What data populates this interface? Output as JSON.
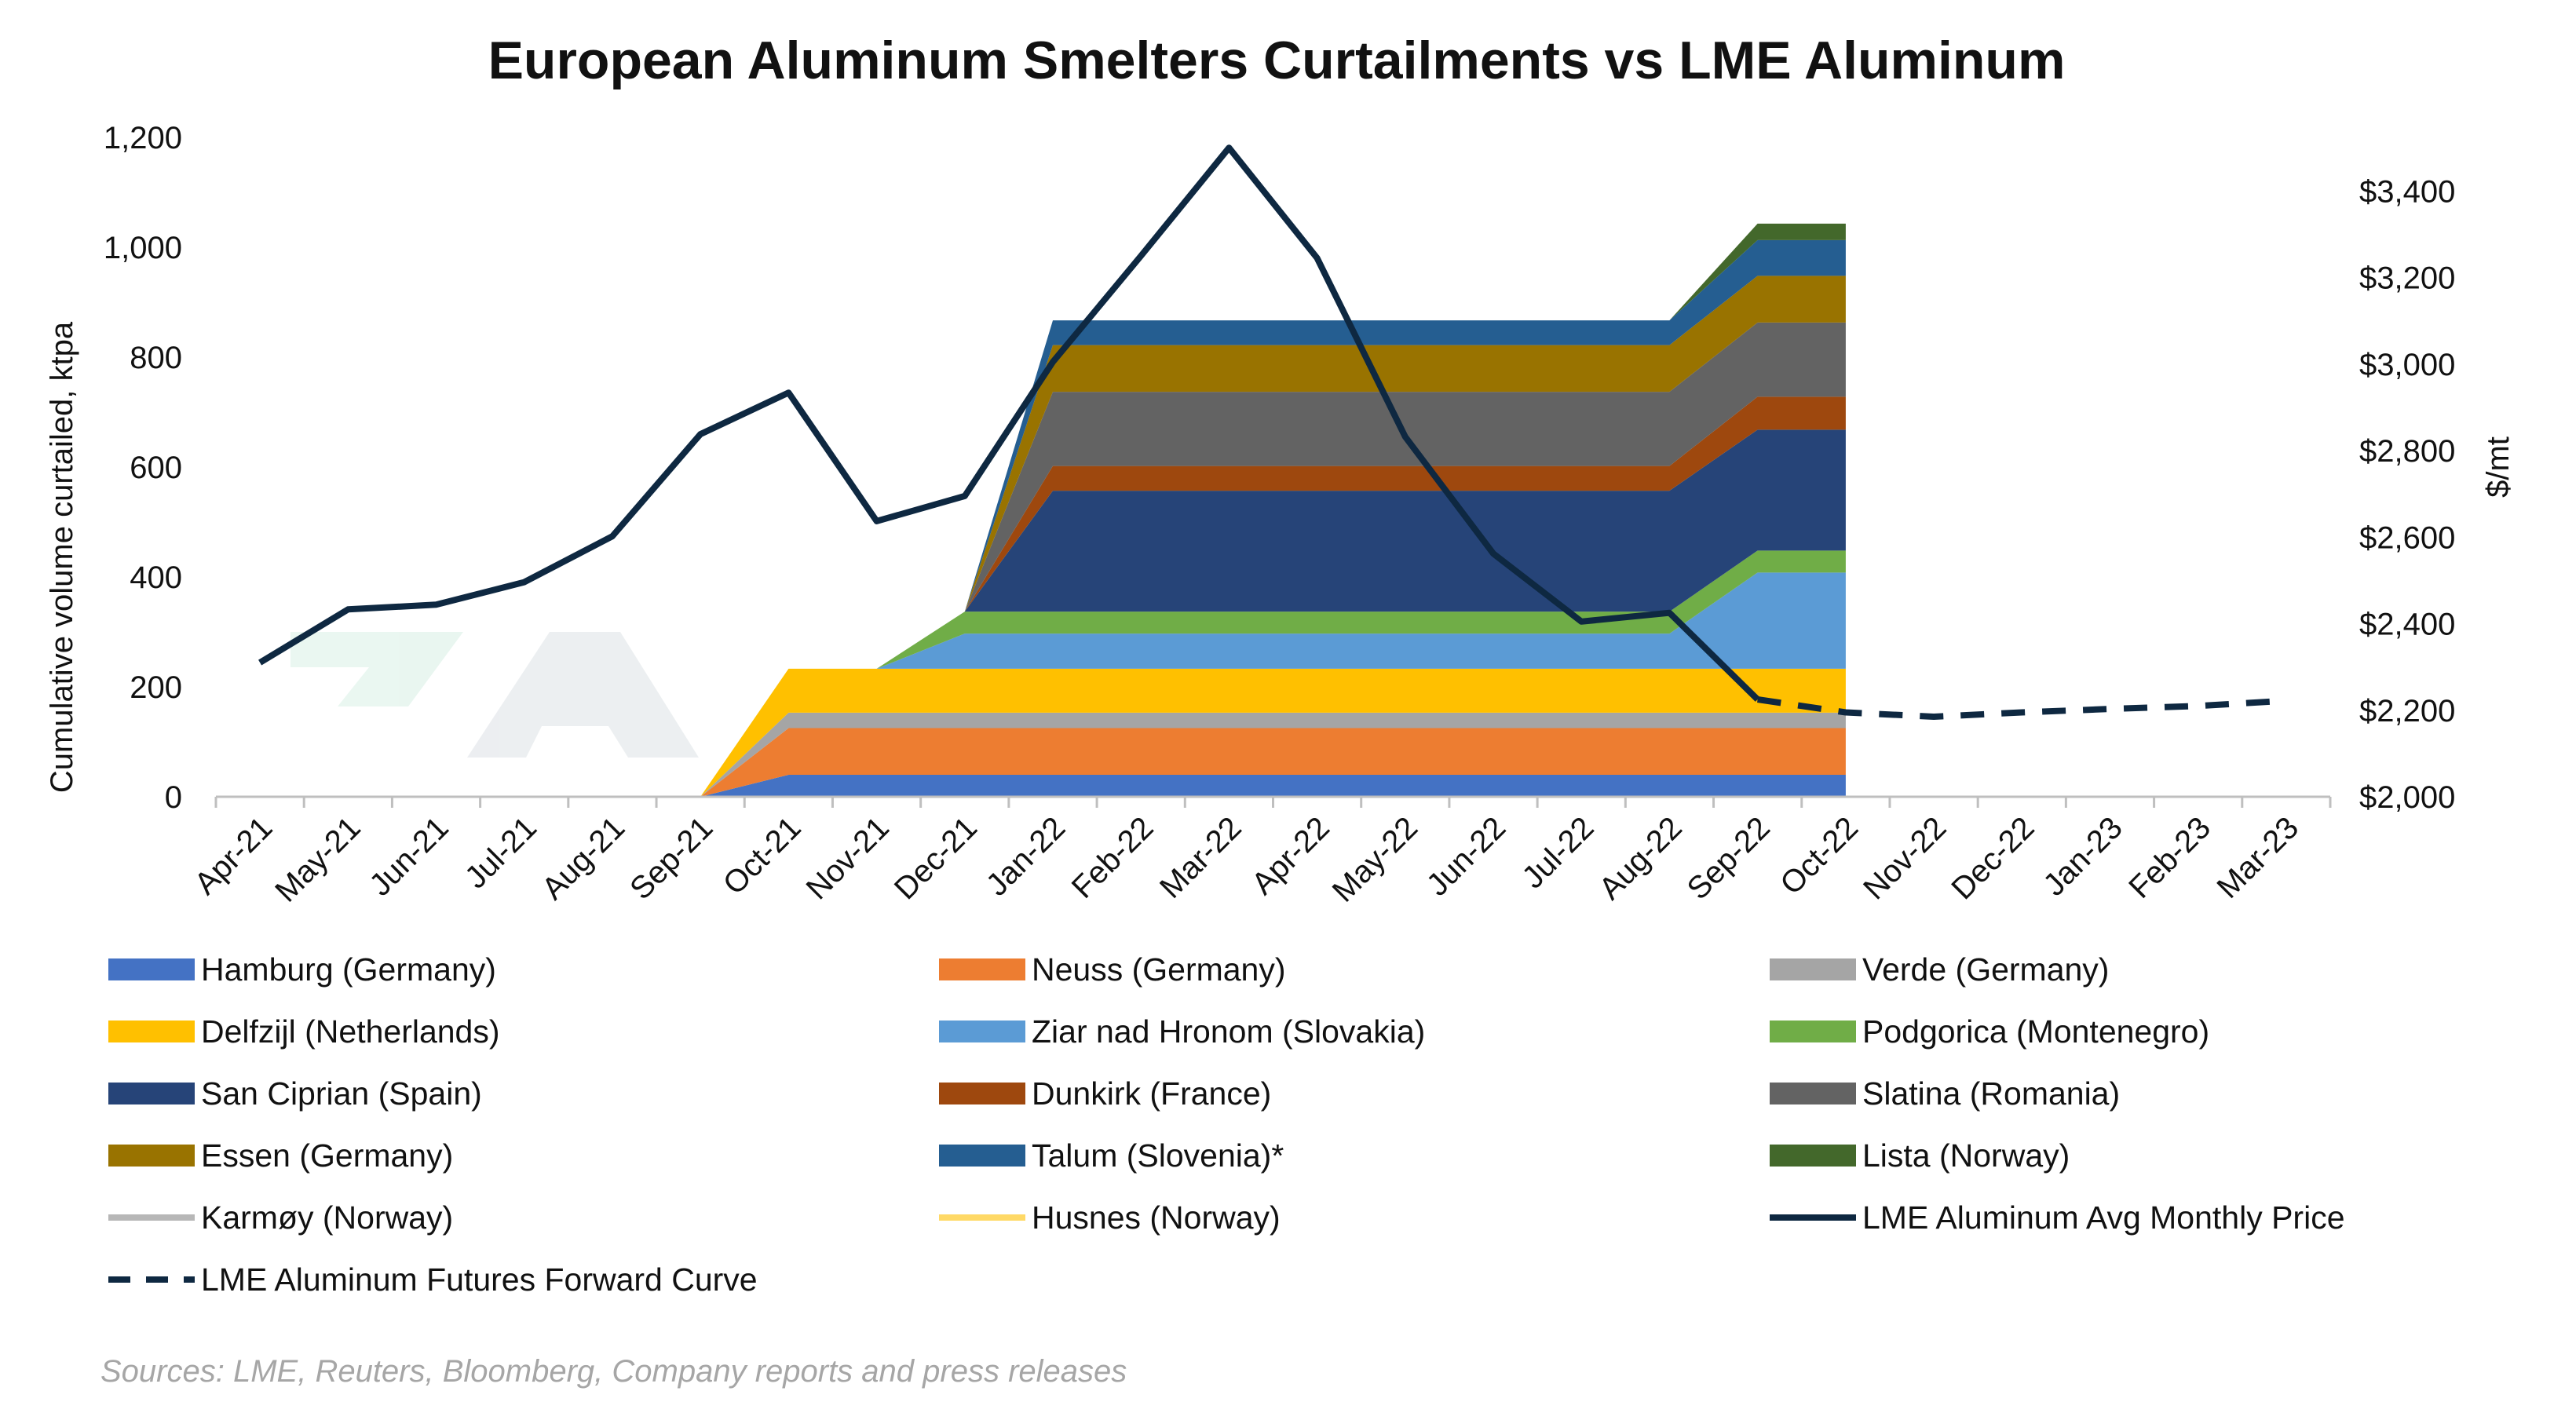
{
  "chart_data": {
    "type": "area",
    "title": "European Aluminum Smelters Curtailments vs LME Aluminum",
    "ylabel": "Cumulative volume curtailed, ktpa",
    "y2label": "$/mt",
    "ylim": [
      0,
      1200
    ],
    "yticks": [
      0,
      200,
      400,
      600,
      800,
      1000,
      1200
    ],
    "y2lim": [
      2000,
      3524
    ],
    "y2ticks": [
      2000,
      2200,
      2400,
      2600,
      2800,
      3000,
      3200,
      3400
    ],
    "categories": [
      "Apr-21",
      "May-21",
      "Jun-21",
      "Jul-21",
      "Aug-21",
      "Sep-21",
      "Oct-21",
      "Nov-21",
      "Dec-21",
      "Jan-22",
      "Feb-22",
      "Mar-22",
      "Apr-22",
      "May-22",
      "Jun-22",
      "Jul-22",
      "Aug-22",
      "Sep-22",
      "Oct-22",
      "Nov-22",
      "Dec-22",
      "Jan-23",
      "Feb-23",
      "Mar-23"
    ],
    "stacked_series": [
      {
        "name": "Hamburg (Germany)",
        "color": "#4472c4",
        "values": [
          0,
          0,
          0,
          0,
          0,
          0,
          40,
          40,
          40,
          40,
          40,
          40,
          40,
          40,
          40,
          40,
          40,
          40,
          40
        ]
      },
      {
        "name": "Neuss (Germany)",
        "color": "#ed7d31",
        "values": [
          0,
          0,
          0,
          0,
          0,
          0,
          85,
          85,
          85,
          85,
          85,
          85,
          85,
          85,
          85,
          85,
          85,
          85,
          85
        ]
      },
      {
        "name": "Verde (Germany)",
        "color": "#a5a5a5",
        "values": [
          0,
          0,
          0,
          0,
          0,
          0,
          28,
          28,
          28,
          28,
          28,
          28,
          28,
          28,
          28,
          28,
          28,
          28,
          28
        ]
      },
      {
        "name": "Delfzijl (Netherlands)",
        "color": "#ffc000",
        "values": [
          0,
          0,
          0,
          0,
          0,
          0,
          80,
          80,
          80,
          80,
          80,
          80,
          80,
          80,
          80,
          80,
          80,
          80,
          80
        ]
      },
      {
        "name": "Ziar nad Hronom (Slovakia)",
        "color": "#5b9bd5",
        "values": [
          0,
          0,
          0,
          0,
          0,
          0,
          0,
          0,
          64,
          64,
          64,
          64,
          64,
          64,
          64,
          64,
          64,
          175,
          175
        ]
      },
      {
        "name": "Podgorica (Montenegro)",
        "color": "#70ad47",
        "values": [
          0,
          0,
          0,
          0,
          0,
          0,
          0,
          0,
          40,
          40,
          40,
          40,
          40,
          40,
          40,
          40,
          40,
          40,
          40
        ]
      },
      {
        "name": "San Ciprian (Spain)",
        "color": "#264478",
        "values": [
          0,
          0,
          0,
          0,
          0,
          0,
          0,
          0,
          0,
          220,
          220,
          220,
          220,
          220,
          220,
          220,
          220,
          220,
          220
        ]
      },
      {
        "name": "Dunkirk (France)",
        "color": "#9e480e",
        "values": [
          0,
          0,
          0,
          0,
          0,
          0,
          0,
          0,
          0,
          45,
          45,
          45,
          45,
          45,
          45,
          45,
          45,
          60,
          60
        ]
      },
      {
        "name": "Slatina (Romania)",
        "color": "#636363",
        "values": [
          0,
          0,
          0,
          0,
          0,
          0,
          0,
          0,
          0,
          135,
          135,
          135,
          135,
          135,
          135,
          135,
          135,
          135,
          135
        ]
      },
      {
        "name": "Essen (Germany)",
        "color": "#997300",
        "values": [
          0,
          0,
          0,
          0,
          0,
          0,
          0,
          0,
          0,
          85,
          85,
          85,
          85,
          85,
          85,
          85,
          85,
          85,
          85
        ]
      },
      {
        "name": "Talum (Slovenia)*",
        "color": "#255e91",
        "values": [
          0,
          0,
          0,
          0,
          0,
          0,
          0,
          0,
          0,
          45,
          45,
          45,
          45,
          45,
          45,
          45,
          45,
          65,
          65
        ]
      },
      {
        "name": "Lista (Norway)",
        "color": "#43682b",
        "values": [
          0,
          0,
          0,
          0,
          0,
          0,
          0,
          0,
          0,
          0,
          0,
          0,
          0,
          0,
          0,
          0,
          0,
          30,
          30
        ]
      },
      {
        "name": "Karmøy (Norway)",
        "color": "#b7b7b7",
        "values": [
          0,
          0,
          0,
          0,
          0,
          0,
          0,
          0,
          0,
          0,
          0,
          0,
          0,
          0,
          0,
          0,
          0,
          0,
          0
        ]
      },
      {
        "name": "Husnes (Norway)",
        "color": "#ffd966",
        "values": [
          0,
          0,
          0,
          0,
          0,
          0,
          0,
          0,
          0,
          0,
          0,
          0,
          0,
          0,
          0,
          0,
          0,
          0,
          0
        ]
      }
    ],
    "line_series": [
      {
        "name": "LME Aluminum Avg Monthly Price",
        "color": "#0e2841",
        "style": "solid",
        "axis": "right",
        "start_index": 0,
        "values": [
          2310,
          2433,
          2444,
          2496,
          2602,
          2838,
          2934,
          2637,
          2695,
          3005,
          3250,
          3500,
          3245,
          2832,
          2562,
          2405,
          2425,
          2225
        ]
      },
      {
        "name": "LME Aluminum Futures Forward Curve",
        "color": "#0e2841",
        "style": "dashed",
        "axis": "right",
        "start_index": 17,
        "values": [
          2225,
          2195,
          2185,
          2195,
          2203,
          2210,
          2222
        ]
      }
    ],
    "legend_position": "bottom",
    "grid": false
  },
  "source_note": "Sources: LME, Reuters, Bloomberg, Company reports and press releases"
}
